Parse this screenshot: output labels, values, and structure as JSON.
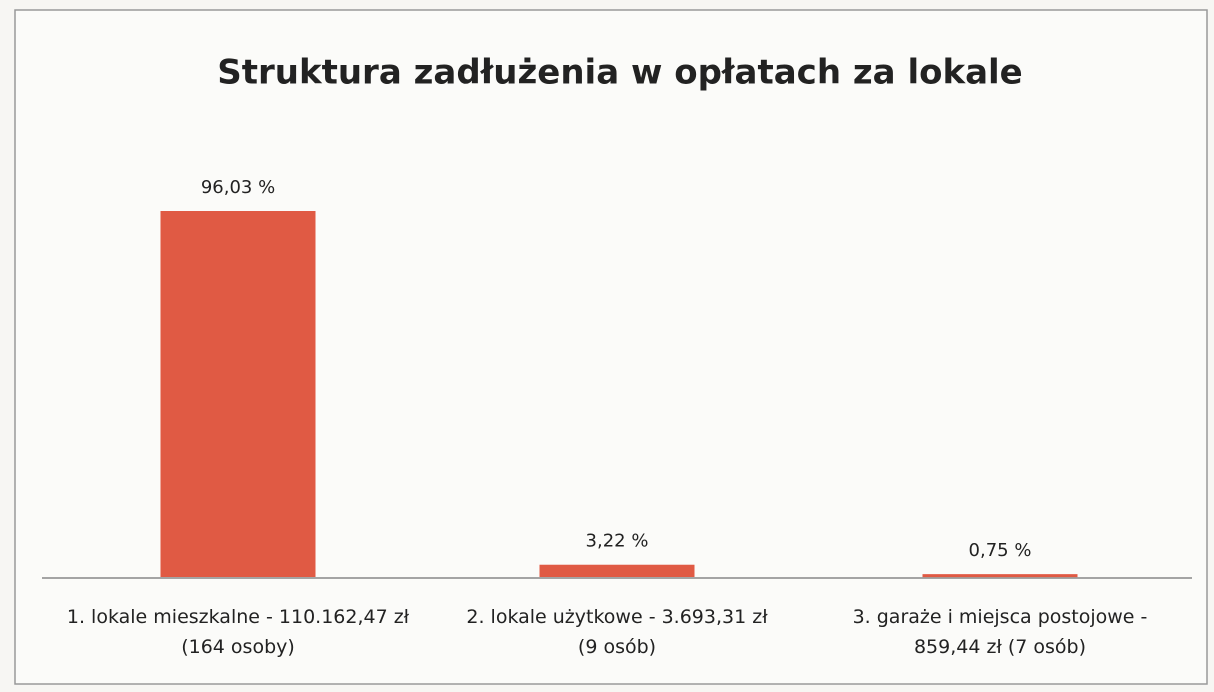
{
  "chart_data": {
    "type": "bar",
    "title": "Struktura zadłużenia w opłatach za lokale",
    "categories": [
      "1. lokale mieszkalne - 110.162,47 zł\n(164 osoby)",
      "2. lokale użytkowe - 3.693,31 zł\n(9 osób)",
      "3. garaże i miejsca postojowe -\n859,44 zł (7 osób)"
    ],
    "values": [
      96.03,
      3.22,
      0.75
    ],
    "value_labels": [
      "96,03 %",
      "3,22 %",
      "0,75 %"
    ],
    "color": "#e05a44"
  }
}
